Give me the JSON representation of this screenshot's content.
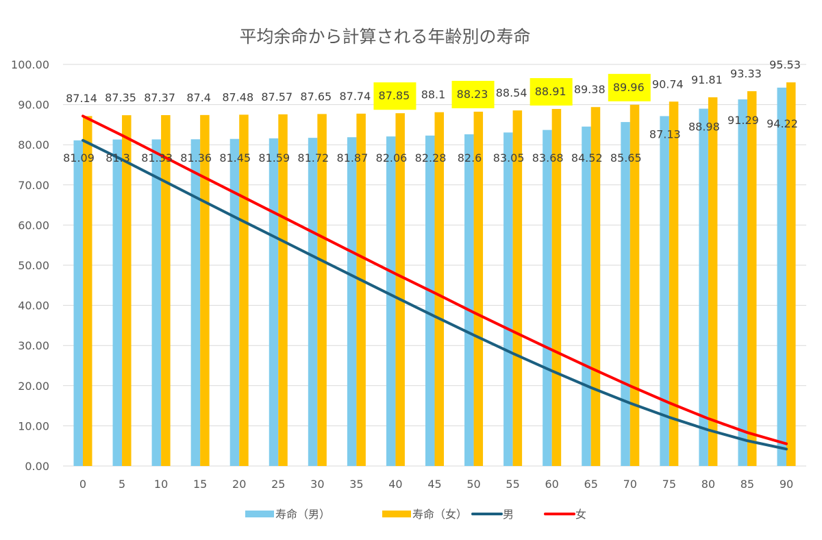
{
  "chart_data": {
    "type": "bar+line",
    "title": "平均余命から計算される年齢別の寿命",
    "xlabel": "",
    "ylabel": "",
    "categories": [
      "0",
      "5",
      "10",
      "15",
      "20",
      "25",
      "30",
      "35",
      "40",
      "45",
      "50",
      "55",
      "60",
      "65",
      "70",
      "75",
      "80",
      "85",
      "90"
    ],
    "ylim": [
      0,
      100
    ],
    "yticks": [
      "0.00",
      "10.00",
      "20.00",
      "30.00",
      "40.00",
      "50.00",
      "60.00",
      "70.00",
      "80.00",
      "90.00",
      "100.00"
    ],
    "grid": true,
    "legend_position": "bottom",
    "series": [
      {
        "name": "寿命（男）",
        "kind": "bar",
        "color": "#7ECBEC",
        "values": [
          81.09,
          81.3,
          81.33,
          81.36,
          81.45,
          81.59,
          81.72,
          81.87,
          82.06,
          82.28,
          82.6,
          83.05,
          83.68,
          84.52,
          85.65,
          87.13,
          88.98,
          91.29,
          94.22
        ]
      },
      {
        "name": "寿命（女）",
        "kind": "bar",
        "color": "#FFC000",
        "values": [
          87.14,
          87.35,
          87.37,
          87.4,
          87.48,
          87.57,
          87.65,
          87.74,
          87.85,
          88.1,
          88.23,
          88.54,
          88.91,
          89.38,
          89.96,
          90.74,
          91.81,
          93.33,
          95.53
        ],
        "highlighted_labels": [
          "40",
          "50",
          "60",
          "70"
        ],
        "highlight_color": "#FFFF00"
      },
      {
        "name": "男",
        "kind": "line",
        "color": "#1B5F80",
        "values": [
          81.09,
          76.3,
          71.33,
          66.36,
          61.45,
          56.59,
          51.72,
          46.87,
          42.06,
          37.28,
          32.6,
          28.05,
          23.68,
          19.52,
          15.65,
          12.13,
          8.98,
          6.29,
          4.22
        ]
      },
      {
        "name": "女",
        "kind": "line",
        "color": "#FF0000",
        "values": [
          87.14,
          82.35,
          77.37,
          72.4,
          67.48,
          62.57,
          57.65,
          52.74,
          47.85,
          43.1,
          38.23,
          33.54,
          28.91,
          24.38,
          19.96,
          15.74,
          11.81,
          8.33,
          5.53
        ]
      }
    ]
  }
}
